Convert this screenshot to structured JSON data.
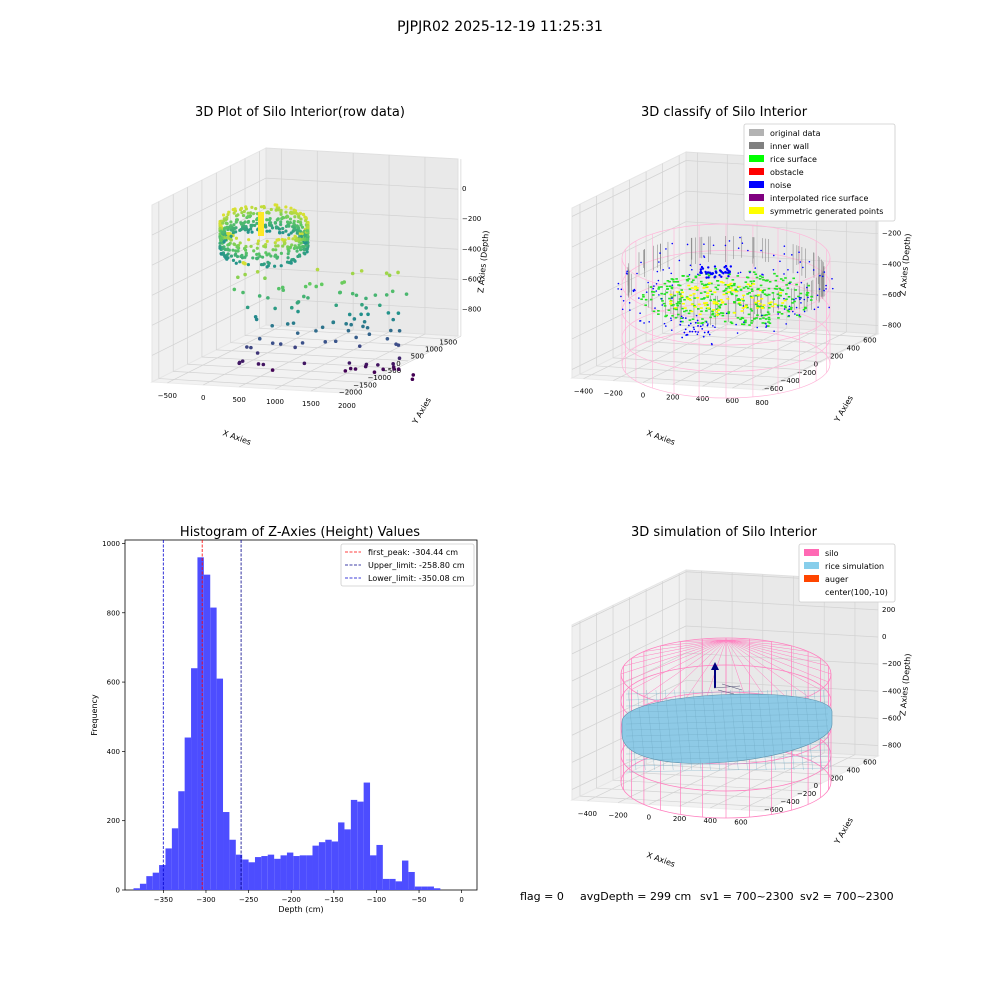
{
  "suptitle": "PJPJR02 2025-12-19 11:25:31",
  "footer": {
    "flag": "flag = 0",
    "avg_depth": "avgDepth = 299 cm",
    "sv1": "sv1 = 700~2300",
    "sv2": "sv2 = 700~2300"
  },
  "chart_data": [
    {
      "type": "scatter",
      "title": "3D Plot of Silo Interior(row data)",
      "xlabel": "X Axies",
      "ylabel": "Y Axies",
      "zlabel": "Z Axies (Depth)",
      "x_ticks": [
        "−500",
        "0",
        "500",
        "1000",
        "1500",
        "2000"
      ],
      "y_ticks": [
        "−2000",
        "−1500",
        "−1000",
        "−500",
        "0",
        "500",
        "1000",
        "1500"
      ],
      "z_ticks": [
        "−800",
        "−600",
        "−400",
        "−200",
        "0"
      ],
      "colormap": "viridis"
    },
    {
      "type": "scatter",
      "title": "3D classify of Silo Interior",
      "xlabel": "X Axies",
      "ylabel": "Y Axies",
      "zlabel": "Z Axies (Depth)",
      "x_ticks": [
        "−400",
        "−200",
        "0",
        "200",
        "400",
        "600",
        "800"
      ],
      "y_ticks": [
        "−600",
        "−400",
        "−200",
        "0",
        "200",
        "400",
        "600"
      ],
      "z_ticks": [
        "−800",
        "−600",
        "−400",
        "−200",
        "0",
        "200"
      ],
      "legend": [
        {
          "label": "original data",
          "color": "#b3b3b3"
        },
        {
          "label": "inner wall",
          "color": "#808080"
        },
        {
          "label": "rice surface",
          "color": "#00ff00"
        },
        {
          "label": "obstacle",
          "color": "#ff0000"
        },
        {
          "label": "noise",
          "color": "#0000ff"
        },
        {
          "label": "interpolated rice surface",
          "color": "#800080"
        },
        {
          "label": "symmetric generated points",
          "color": "#ffff00"
        }
      ]
    },
    {
      "type": "bar",
      "title": "Histogram of Z-Axies (Height) Values",
      "xlabel": "Depth (cm)",
      "ylabel": "Frequency",
      "bin_width": 7.5,
      "bin_start": -385,
      "values": [
        5,
        18,
        40,
        50,
        72,
        120,
        178,
        285,
        440,
        640,
        960,
        910,
        815,
        610,
        225,
        145,
        102,
        88,
        80,
        95,
        98,
        102,
        90,
        100,
        108,
        98,
        100,
        100,
        128,
        138,
        145,
        140,
        195,
        175,
        260,
        255,
        310,
        100,
        130,
        32,
        32,
        25,
        85,
        52,
        10,
        10,
        10,
        5,
        0,
        0,
        0,
        0,
        0
      ],
      "xlim": [
        -395,
        18
      ],
      "ylim": [
        0,
        1010
      ],
      "x_ticks": [
        -350,
        -300,
        -250,
        -200,
        -150,
        -100,
        -50,
        0
      ],
      "x_tick_labels": [
        "−350",
        "−300",
        "−250",
        "−200",
        "−150",
        "−100",
        "−50",
        "0"
      ],
      "y_ticks": [
        0,
        200,
        400,
        600,
        800,
        1000
      ],
      "bar_color": "#4d4dff",
      "vlines": [
        {
          "x": -304.44,
          "label": "first_peak: -304.44 cm",
          "color": "#ff0000"
        },
        {
          "x": -258.8,
          "label": "Upper_limit: -258.80 cm",
          "color": "#00008b"
        },
        {
          "x": -350.08,
          "label": "Lower_limit: -350.08 cm",
          "color": "#0000cd"
        }
      ]
    },
    {
      "type": "other",
      "title": "3D simulation of Silo Interior",
      "xlabel": "X Axies",
      "ylabel": "Y Axies",
      "zlabel": "Z Axies (Depth)",
      "x_ticks": [
        "−400",
        "−200",
        "0",
        "200",
        "400",
        "600"
      ],
      "y_ticks": [
        "−600",
        "−400",
        "−200",
        "0",
        "200",
        "400",
        "600"
      ],
      "z_ticks": [
        "−800",
        "−600",
        "−400",
        "−200",
        "0",
        "200",
        "400"
      ],
      "legend": [
        {
          "label": "silo",
          "color": "#ff69b4"
        },
        {
          "label": "rice simulation",
          "color": "#87ceeb"
        },
        {
          "label": "auger",
          "color": "#ff4500"
        },
        {
          "label": "center(100,-10)",
          "color": ""
        }
      ]
    }
  ]
}
